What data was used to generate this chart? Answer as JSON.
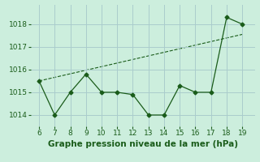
{
  "x": [
    6,
    7,
    8,
    9,
    10,
    11,
    12,
    13,
    14,
    15,
    16,
    17,
    18,
    19
  ],
  "y": [
    1015.5,
    1014.0,
    1015.0,
    1015.8,
    1015.0,
    1015.0,
    1014.9,
    1014.0,
    1014.0,
    1015.3,
    1015.0,
    1015.0,
    1018.3,
    1018.0
  ],
  "trend_x": [
    6,
    19
  ],
  "trend_y": [
    1015.5,
    1017.55
  ],
  "xlim": [
    5.5,
    19.8
  ],
  "ylim": [
    1013.5,
    1018.85
  ],
  "yticks": [
    1014,
    1015,
    1016,
    1017,
    1018
  ],
  "xticks": [
    6,
    7,
    8,
    9,
    10,
    11,
    12,
    13,
    14,
    15,
    16,
    17,
    18,
    19
  ],
  "xlabel": "Graphe pression niveau de la mer (hPa)",
  "line_color": "#1a5c1a",
  "marker": "D",
  "marker_size": 2.5,
  "bg_color": "#cceedd",
  "grid_color": "#aacccc",
  "xlabel_fontsize": 7.5,
  "tick_fontsize": 6.5
}
